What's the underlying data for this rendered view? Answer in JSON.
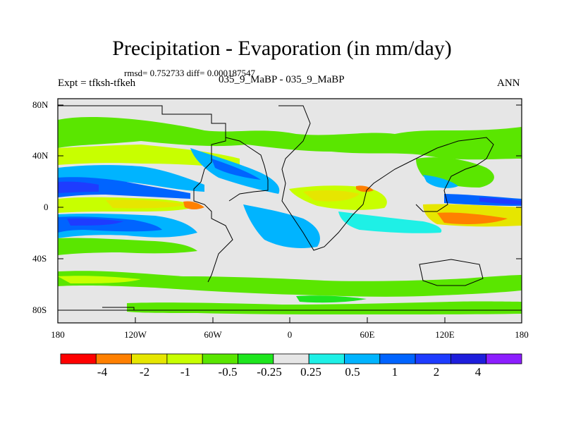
{
  "title": "Precipitation - Evaporation (in mm/day)",
  "stats": "rmsd= 0.752733  diff= 0.000187547",
  "experiment": "Expt = tfksh-tfkeh",
  "case": "035_9_MaBP - 035_9_MaBP",
  "season": "ANN",
  "lat_labels": [
    "80N",
    "40N",
    "0",
    "40S",
    "80S"
  ],
  "lon_labels": [
    "180",
    "120W",
    "60W",
    "0",
    "60E",
    "120E",
    "180"
  ],
  "colorbar": {
    "colors": [
      "#ff0000",
      "#ff8000",
      "#e6e600",
      "#c8ff00",
      "#5ae600",
      "#1ee61e",
      "#e6e6e6",
      "#1ef0e6",
      "#00b4ff",
      "#0064ff",
      "#1e3cff",
      "#1e1edc",
      "#8c1eff"
    ],
    "labels": [
      "-4",
      "-2",
      "-1",
      "-0.5",
      "-0.25",
      "0.25",
      "0.5",
      "1",
      "2",
      "4"
    ]
  },
  "chart_data": {
    "type": "heatmap",
    "projection": "cylindrical-equidistant",
    "xrange": [
      -180,
      180
    ],
    "yrange": [
      -90,
      90
    ],
    "levels": [
      -4,
      -2,
      -1,
      -0.5,
      -0.25,
      0.25,
      0.5,
      1,
      2,
      4
    ],
    "features": [
      "positive (blue) bands along ITCZ in tropical Pacific ~10N and ~10S",
      "negative (yellow/orange) subtropical Pacific and Indian-Pacific near equator",
      "green (slightly negative) mid-latitude bands in both hemispheres",
      "gray near-zero over most continental interiors and polar regions"
    ]
  }
}
